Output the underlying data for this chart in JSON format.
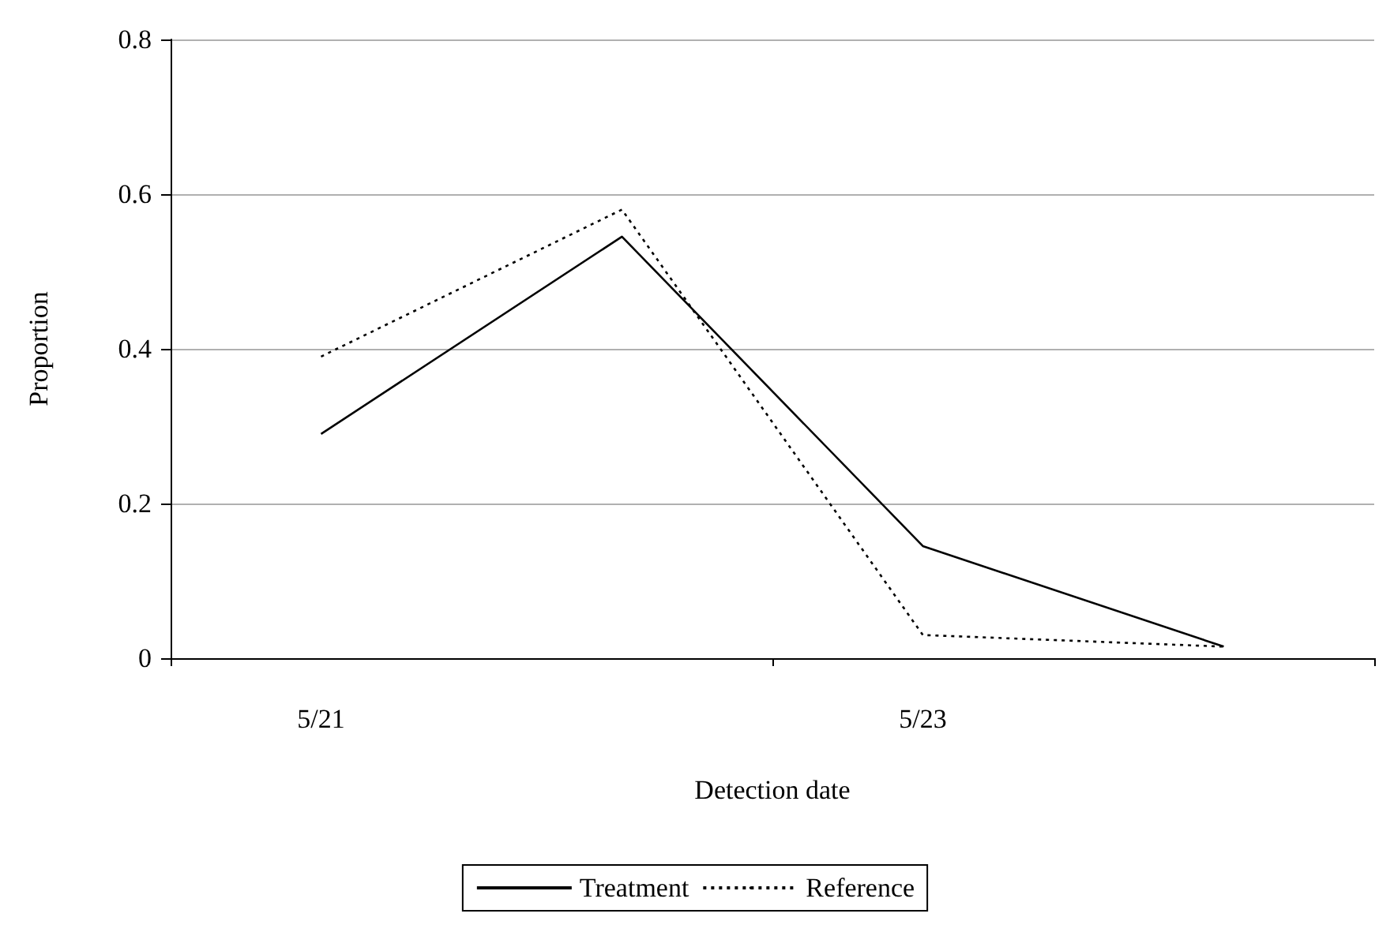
{
  "chart_data": {
    "type": "line",
    "xlabel": "Detection date",
    "ylabel": "Proportion",
    "categories": [
      "5/21",
      null,
      "5/23",
      null
    ],
    "series": [
      {
        "name": "Treatment",
        "color": "#000000",
        "line_style": "solid",
        "values": [
          0.29,
          0.545,
          0.145,
          0.015
        ]
      },
      {
        "name": "Reference",
        "color": "#000000",
        "line_style": "dotted",
        "values": [
          0.39,
          0.58,
          0.03,
          0.015
        ]
      }
    ],
    "ylim": [
      0,
      0.8
    ],
    "yticks": [
      0,
      0.2,
      0.4,
      0.6,
      0.8
    ],
    "grid": "y",
    "legend": "bottom",
    "marker": "none"
  }
}
